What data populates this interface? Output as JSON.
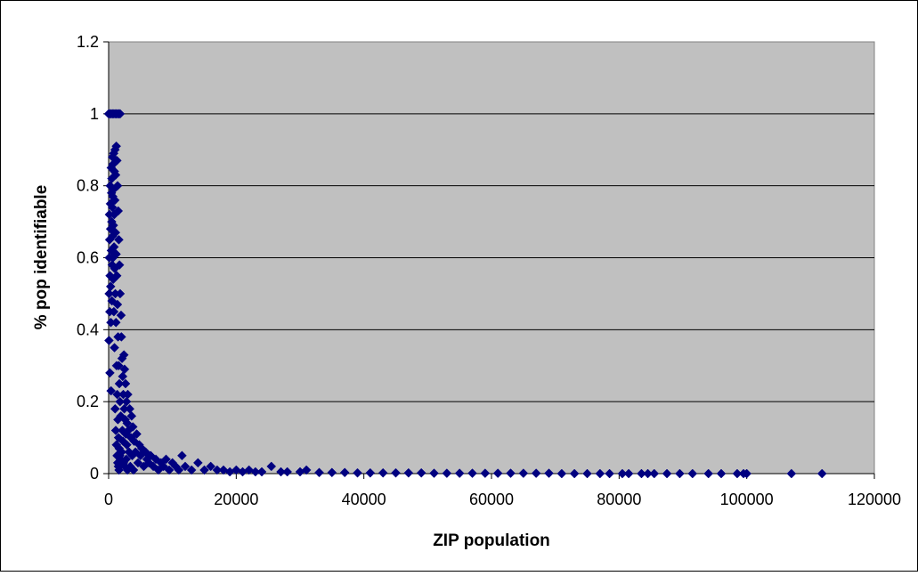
{
  "chart_data": {
    "type": "scatter",
    "title": "",
    "xlabel": "ZIP population",
    "ylabel": "% pop identifiable",
    "xlim": [
      0,
      120000
    ],
    "ylim": [
      0,
      1.2
    ],
    "xticks": [
      0,
      20000,
      40000,
      60000,
      80000,
      100000,
      120000
    ],
    "yticks": [
      0,
      0.2,
      0.4,
      0.6,
      0.8,
      1,
      1.2
    ],
    "xtick_labels": [
      "0",
      "20000",
      "40000",
      "60000",
      "80000",
      "100000",
      "120000"
    ],
    "ytick_labels": [
      "0",
      "0.2",
      "0.4",
      "0.6",
      "0.8",
      "1",
      "1.2"
    ],
    "grid": "horizontal",
    "plot_background": "#c0c0c0",
    "marker_color": "#000080",
    "marker": "diamond",
    "series": [
      {
        "points": [
          [
            0,
            1
          ],
          [
            200,
            1
          ],
          [
            400,
            1
          ],
          [
            600,
            1
          ],
          [
            800,
            1
          ],
          [
            1000,
            1
          ],
          [
            1200,
            1
          ],
          [
            1400,
            1
          ],
          [
            1600,
            1
          ],
          [
            1800,
            1
          ],
          [
            50,
            0.37
          ],
          [
            80,
            0.5
          ],
          [
            100,
            0.6
          ],
          [
            120,
            0.72
          ],
          [
            150,
            0.65
          ],
          [
            180,
            0.45
          ],
          [
            200,
            0.28
          ],
          [
            220,
            0.55
          ],
          [
            250,
            0.8
          ],
          [
            280,
            0.75
          ],
          [
            300,
            0.68
          ],
          [
            320,
            0.52
          ],
          [
            350,
            0.42
          ],
          [
            380,
            0.23
          ],
          [
            400,
            0.85
          ],
          [
            420,
            0.62
          ],
          [
            450,
            0.78
          ],
          [
            480,
            0.7
          ],
          [
            500,
            0.82
          ],
          [
            520,
            0.48
          ],
          [
            550,
            0.58
          ],
          [
            580,
            0.74
          ],
          [
            600,
            0.88
          ],
          [
            620,
            0.66
          ],
          [
            650,
            0.77
          ],
          [
            680,
            0.6
          ],
          [
            700,
            0.86
          ],
          [
            720,
            0.54
          ],
          [
            750,
            0.69
          ],
          [
            780,
            0.79
          ],
          [
            800,
            0.89
          ],
          [
            820,
            0.45
          ],
          [
            850,
            0.63
          ],
          [
            880,
            0.72
          ],
          [
            900,
            0.84
          ],
          [
            920,
            0.35
          ],
          [
            950,
            0.57
          ],
          [
            980,
            0.76
          ],
          [
            1000,
            0.9
          ],
          [
            1020,
            0.18
          ],
          [
            1050,
            0.5
          ],
          [
            1080,
            0.67
          ],
          [
            1100,
            0.83
          ],
          [
            1120,
            0.12
          ],
          [
            1150,
            0.42
          ],
          [
            1180,
            0.61
          ],
          [
            1200,
            0.91
          ],
          [
            1220,
            0.08
          ],
          [
            1250,
            0.3
          ],
          [
            1280,
            0.55
          ],
          [
            1300,
            0.87
          ],
          [
            1320,
            0.05
          ],
          [
            1350,
            0.22
          ],
          [
            1380,
            0.47
          ],
          [
            1400,
            0.8
          ],
          [
            1420,
            0.03
          ],
          [
            1450,
            0.15
          ],
          [
            1480,
            0.38
          ],
          [
            1500,
            0.73
          ],
          [
            1520,
            0.02
          ],
          [
            1550,
            0.1
          ],
          [
            1580,
            0.3
          ],
          [
            1600,
            0.65
          ],
          [
            1620,
            0.01
          ],
          [
            1650,
            0.07
          ],
          [
            1680,
            0.25
          ],
          [
            1700,
            0.58
          ],
          [
            1720,
            0.02
          ],
          [
            1750,
            0.05
          ],
          [
            1780,
            0.2
          ],
          [
            1800,
            0.5
          ],
          [
            1850,
            0.04
          ],
          [
            1900,
            0.16
          ],
          [
            1950,
            0.44
          ],
          [
            2000,
            0.38
          ],
          [
            2050,
            0.06
          ],
          [
            2100,
            0.32
          ],
          [
            2150,
            0.12
          ],
          [
            2200,
            0.27
          ],
          [
            2250,
            0.09
          ],
          [
            2300,
            0.22
          ],
          [
            2350,
            0.03
          ],
          [
            2400,
            0.33
          ],
          [
            2450,
            0.18
          ],
          [
            2500,
            0.29
          ],
          [
            2550,
            0.02
          ],
          [
            2600,
            0.15
          ],
          [
            2650,
            0.25
          ],
          [
            2700,
            0.11
          ],
          [
            2750,
            0.04
          ],
          [
            2800,
            0.2
          ],
          [
            2850,
            0.08
          ],
          [
            2900,
            0.14
          ],
          [
            2950,
            0.01
          ],
          [
            3000,
            0.22
          ],
          [
            3100,
            0.12
          ],
          [
            3200,
            0.06
          ],
          [
            3300,
            0.18
          ],
          [
            3400,
            0.02
          ],
          [
            3500,
            0.1
          ],
          [
            3600,
            0.16
          ],
          [
            3700,
            0.05
          ],
          [
            3800,
            0.13
          ],
          [
            3900,
            0.01
          ],
          [
            4000,
            0.09
          ],
          [
            4200,
            0.06
          ],
          [
            4400,
            0.11
          ],
          [
            4600,
            0.03
          ],
          [
            4800,
            0.08
          ],
          [
            5000,
            0.05
          ],
          [
            5200,
            0.07
          ],
          [
            5500,
            0.02
          ],
          [
            5800,
            0.06
          ],
          [
            6000,
            0.04
          ],
          [
            6300,
            0.03
          ],
          [
            6600,
            0.05
          ],
          [
            7000,
            0.02
          ],
          [
            7400,
            0.04
          ],
          [
            7800,
            0.01
          ],
          [
            8200,
            0.03
          ],
          [
            8600,
            0.02
          ],
          [
            9000,
            0.04
          ],
          [
            9500,
            0.01
          ],
          [
            10000,
            0.03
          ],
          [
            10500,
            0.02
          ],
          [
            11000,
            0.01
          ],
          [
            11500,
            0.05
          ],
          [
            12000,
            0.02
          ],
          [
            13000,
            0.01
          ],
          [
            14000,
            0.03
          ],
          [
            15000,
            0.01
          ],
          [
            16000,
            0.02
          ],
          [
            17000,
            0.01
          ],
          [
            18000,
            0.01
          ],
          [
            19000,
            0.005
          ],
          [
            20000,
            0.01
          ],
          [
            21000,
            0.005
          ],
          [
            22000,
            0.01
          ],
          [
            23000,
            0.005
          ],
          [
            24000,
            0.005
          ],
          [
            25500,
            0.02
          ],
          [
            27000,
            0.005
          ],
          [
            28000,
            0.005
          ],
          [
            30000,
            0.005
          ],
          [
            31000,
            0.01
          ],
          [
            33000,
            0.003
          ],
          [
            35000,
            0.003
          ],
          [
            37000,
            0.003
          ],
          [
            39000,
            0.002
          ],
          [
            41000,
            0.002
          ],
          [
            43000,
            0.002
          ],
          [
            45000,
            0.002
          ],
          [
            47000,
            0.002
          ],
          [
            49000,
            0.002
          ],
          [
            51000,
            0.001
          ],
          [
            53000,
            0.001
          ],
          [
            55000,
            0.001
          ],
          [
            57000,
            0.001
          ],
          [
            59000,
            0.001
          ],
          [
            61000,
            0.001
          ],
          [
            63000,
            0.001
          ],
          [
            65000,
            0.001
          ],
          [
            67000,
            0.001
          ],
          [
            69000,
            0.001
          ],
          [
            71000,
            0
          ],
          [
            73000,
            0
          ],
          [
            75000,
            0
          ],
          [
            77000,
            0
          ],
          [
            78500,
            0
          ],
          [
            80500,
            0
          ],
          [
            81500,
            0
          ],
          [
            83500,
            0
          ],
          [
            84500,
            0
          ],
          [
            85500,
            0
          ],
          [
            87500,
            0
          ],
          [
            89500,
            0
          ],
          [
            91500,
            0
          ],
          [
            94000,
            0
          ],
          [
            96000,
            0
          ],
          [
            98500,
            0
          ],
          [
            99500,
            0
          ],
          [
            100000,
            0
          ],
          [
            107000,
            0
          ],
          [
            111800,
            0
          ]
        ]
      }
    ]
  }
}
